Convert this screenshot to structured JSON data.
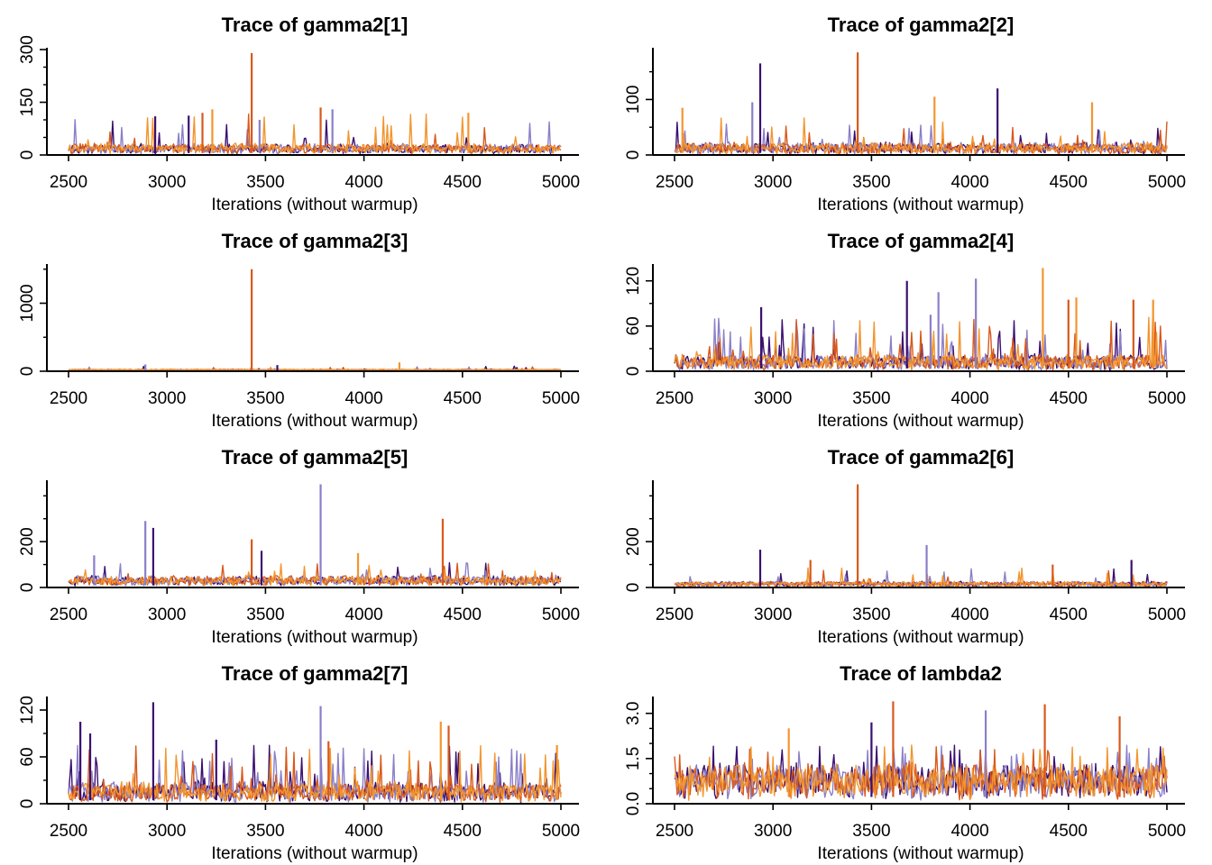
{
  "figure": {
    "background": "#ffffff"
  },
  "colors": {
    "chain1": "#3b0f70",
    "chain2": "#8a7fc8",
    "chain3": "#d8591c",
    "chain4": "#f2952f"
  },
  "chart_data": [
    {
      "type": "line",
      "title": "Trace of  gamma2[1]",
      "xlabel": "Iterations (without warmup)",
      "xlim": [
        2500,
        5000
      ],
      "xticks": [
        2500,
        3000,
        3500,
        4000,
        4500,
        5000
      ],
      "ylim": [
        0,
        300
      ],
      "yticks": [
        0,
        150,
        300
      ],
      "yminor": [
        50,
        100,
        200,
        250
      ],
      "trace": {
        "typical": 18,
        "spread": 12,
        "spike_rate": 0.03,
        "spike_max": 100,
        "seed": 11
      },
      "spikes": [
        {
          "chain": 3,
          "x": 3430,
          "y": 290
        },
        {
          "chain": 1,
          "x": 3110,
          "y": 112
        },
        {
          "chain": 3,
          "x": 3180,
          "y": 120
        },
        {
          "chain": 4,
          "x": 3230,
          "y": 130
        },
        {
          "chain": 2,
          "x": 3470,
          "y": 100
        },
        {
          "chain": 3,
          "x": 3780,
          "y": 135
        },
        {
          "chain": 2,
          "x": 3840,
          "y": 130
        },
        {
          "chain": 4,
          "x": 4530,
          "y": 120
        },
        {
          "chain": 1,
          "x": 2940,
          "y": 110
        }
      ]
    },
    {
      "type": "line",
      "title": "Trace of  gamma2[2]",
      "xlabel": "Iterations (without warmup)",
      "xlim": [
        2500,
        5000
      ],
      "xticks": [
        2500,
        3000,
        3500,
        4000,
        4500,
        5000
      ],
      "ylim": [
        0,
        190
      ],
      "yticks": [
        0,
        100
      ],
      "yminor": [
        50,
        150
      ],
      "trace": {
        "typical": 12,
        "spread": 9,
        "spike_rate": 0.035,
        "spike_max": 55,
        "seed": 23
      },
      "spikes": [
        {
          "chain": 3,
          "x": 3430,
          "y": 185
        },
        {
          "chain": 1,
          "x": 2935,
          "y": 165
        },
        {
          "chain": 1,
          "x": 4140,
          "y": 120
        },
        {
          "chain": 4,
          "x": 3820,
          "y": 105
        },
        {
          "chain": 4,
          "x": 4620,
          "y": 95
        },
        {
          "chain": 2,
          "x": 2895,
          "y": 95
        },
        {
          "chain": 4,
          "x": 2540,
          "y": 85
        }
      ]
    },
    {
      "type": "line",
      "title": "Trace of  gamma2[3]",
      "xlabel": "Iterations (without warmup)",
      "xlim": [
        2500,
        5000
      ],
      "xticks": [
        2500,
        3000,
        3500,
        4000,
        4500,
        5000
      ],
      "ylim": [
        0,
        1550
      ],
      "yticks": [
        0,
        1000
      ],
      "yminor": [
        500,
        1500
      ],
      "trace": {
        "typical": 20,
        "spread": 8,
        "spike_rate": 0.02,
        "spike_max": 60,
        "seed": 37
      },
      "spikes": [
        {
          "chain": 3,
          "x": 3430,
          "y": 1500
        },
        {
          "chain": 2,
          "x": 2890,
          "y": 100
        },
        {
          "chain": 4,
          "x": 4180,
          "y": 130
        },
        {
          "chain": 1,
          "x": 3560,
          "y": 90
        }
      ]
    },
    {
      "type": "line",
      "title": "Trace of  gamma2[4]",
      "xlabel": "Iterations (without warmup)",
      "xlim": [
        2500,
        5000
      ],
      "xticks": [
        2500,
        3000,
        3500,
        4000,
        4500,
        5000
      ],
      "ylim": [
        0,
        140
      ],
      "yticks": [
        0,
        60,
        120
      ],
      "yminor": [
        30,
        90
      ],
      "trace": {
        "typical": 12,
        "spread": 9,
        "spike_rate": 0.06,
        "spike_max": 60,
        "seed": 41
      },
      "spikes": [
        {
          "chain": 4,
          "x": 4370,
          "y": 137
        },
        {
          "chain": 2,
          "x": 4030,
          "y": 123
        },
        {
          "chain": 1,
          "x": 3680,
          "y": 120
        },
        {
          "chain": 2,
          "x": 3840,
          "y": 105
        },
        {
          "chain": 3,
          "x": 4500,
          "y": 95
        },
        {
          "chain": 4,
          "x": 4540,
          "y": 98
        },
        {
          "chain": 3,
          "x": 4830,
          "y": 95
        },
        {
          "chain": 4,
          "x": 4930,
          "y": 95
        },
        {
          "chain": 1,
          "x": 2940,
          "y": 85
        },
        {
          "chain": 2,
          "x": 3800,
          "y": 75
        }
      ]
    },
    {
      "type": "line",
      "title": "Trace of  gamma2[5]",
      "xlabel": "Iterations (without warmup)",
      "xlim": [
        2500,
        5000
      ],
      "xticks": [
        2500,
        3000,
        3500,
        4000,
        4500,
        5000
      ],
      "ylim": [
        0,
        460
      ],
      "yticks": [
        0,
        200
      ],
      "yminor": [
        100,
        300,
        400
      ],
      "trace": {
        "typical": 30,
        "spread": 18,
        "spike_rate": 0.035,
        "spike_max": 80,
        "seed": 53
      },
      "spikes": [
        {
          "chain": 2,
          "x": 3780,
          "y": 450
        },
        {
          "chain": 3,
          "x": 4400,
          "y": 300
        },
        {
          "chain": 2,
          "x": 2890,
          "y": 290
        },
        {
          "chain": 1,
          "x": 2930,
          "y": 260
        },
        {
          "chain": 3,
          "x": 3430,
          "y": 210
        },
        {
          "chain": 1,
          "x": 3480,
          "y": 160
        },
        {
          "chain": 4,
          "x": 3970,
          "y": 150
        },
        {
          "chain": 2,
          "x": 2630,
          "y": 140
        }
      ]
    },
    {
      "type": "line",
      "title": "Trace of  gamma2[6]",
      "xlabel": "Iterations (without warmup)",
      "xlim": [
        2500,
        5000
      ],
      "xticks": [
        2500,
        3000,
        3500,
        4000,
        4500,
        5000
      ],
      "ylim": [
        0,
        460
      ],
      "yticks": [
        0,
        200
      ],
      "yminor": [
        100,
        300,
        400
      ],
      "trace": {
        "typical": 15,
        "spread": 10,
        "spike_rate": 0.03,
        "spike_max": 70,
        "seed": 67
      },
      "spikes": [
        {
          "chain": 3,
          "x": 3430,
          "y": 450
        },
        {
          "chain": 2,
          "x": 3780,
          "y": 185
        },
        {
          "chain": 1,
          "x": 2935,
          "y": 165
        },
        {
          "chain": 3,
          "x": 3190,
          "y": 120
        },
        {
          "chain": 1,
          "x": 4820,
          "y": 120
        },
        {
          "chain": 3,
          "x": 4420,
          "y": 100
        }
      ]
    },
    {
      "type": "line",
      "title": "Trace of  gamma2[7]",
      "xlabel": "Iterations (without warmup)",
      "xlim": [
        2500,
        5000
      ],
      "xticks": [
        2500,
        3000,
        3500,
        4000,
        4500,
        5000
      ],
      "ylim": [
        0,
        135
      ],
      "yticks": [
        0,
        60,
        120
      ],
      "yminor": [
        30,
        90
      ],
      "trace": {
        "typical": 15,
        "spread": 11,
        "spike_rate": 0.07,
        "spike_max": 60,
        "seed": 79
      },
      "spikes": [
        {
          "chain": 1,
          "x": 2930,
          "y": 130
        },
        {
          "chain": 2,
          "x": 3780,
          "y": 125
        },
        {
          "chain": 1,
          "x": 2560,
          "y": 105
        },
        {
          "chain": 4,
          "x": 4390,
          "y": 105
        },
        {
          "chain": 3,
          "x": 4430,
          "y": 100
        },
        {
          "chain": 1,
          "x": 2610,
          "y": 90
        },
        {
          "chain": 1,
          "x": 3250,
          "y": 82
        },
        {
          "chain": 3,
          "x": 3820,
          "y": 80
        },
        {
          "chain": 4,
          "x": 4980,
          "y": 75
        }
      ]
    },
    {
      "type": "line",
      "title": "Trace of  lambda2",
      "xlabel": "Iterations (without warmup)",
      "xlim": [
        2500,
        5000
      ],
      "xticks": [
        2500,
        3000,
        3500,
        4000,
        4500,
        5000
      ],
      "ylim": [
        0,
        3.5
      ],
      "yticks": [
        0.0,
        1.5,
        3.0
      ],
      "ytick_labels": [
        "0.0",
        "1.5",
        "3.0"
      ],
      "yminor": [
        0.5,
        1.0,
        2.0,
        2.5
      ],
      "trace": {
        "typical": 0.75,
        "spread": 0.5,
        "spike_rate": 0.06,
        "spike_max": 1.2,
        "seed": 97
      },
      "spikes": [
        {
          "chain": 3,
          "x": 3610,
          "y": 3.4
        },
        {
          "chain": 3,
          "x": 4380,
          "y": 3.3
        },
        {
          "chain": 2,
          "x": 4080,
          "y": 3.1
        },
        {
          "chain": 1,
          "x": 3500,
          "y": 2.7
        },
        {
          "chain": 3,
          "x": 4760,
          "y": 2.9
        },
        {
          "chain": 4,
          "x": 3080,
          "y": 2.5
        }
      ]
    }
  ]
}
